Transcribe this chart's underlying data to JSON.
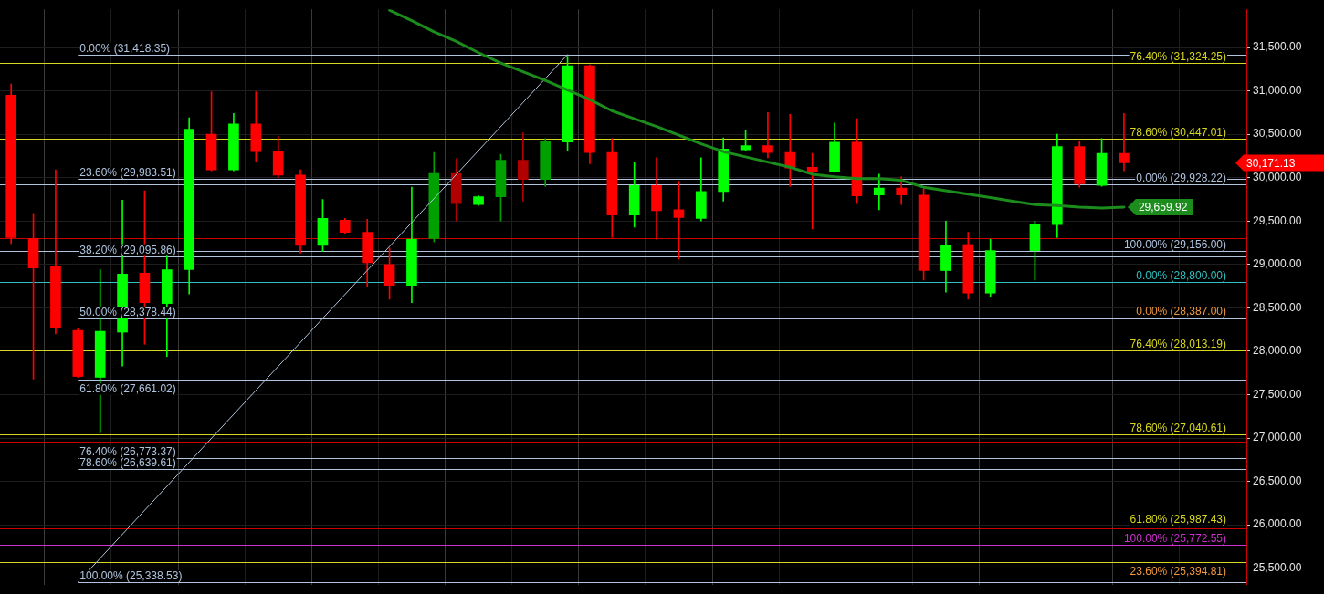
{
  "chart_data": {
    "type": "candlestick",
    "categories": [
      null,
      null,
      null,
      null,
      null,
      null,
      null,
      null,
      null,
      null,
      null,
      null,
      null,
      null,
      null,
      null,
      null,
      null,
      null,
      null,
      null,
      null,
      null,
      null,
      null,
      null,
      null,
      null,
      null,
      null,
      null,
      null,
      null,
      null,
      null,
      null,
      null,
      null,
      null,
      null,
      null,
      null,
      null,
      null,
      null,
      null,
      null,
      null,
      null,
      null,
      null
    ],
    "ohlc": [
      [
        30950,
        31080,
        29240,
        29310
      ],
      [
        29300,
        29590,
        27680,
        28960
      ],
      [
        28980,
        30090,
        28200,
        28270
      ],
      [
        28240,
        28260,
        27700,
        27710
      ],
      [
        27700,
        28940,
        27060,
        28230
      ],
      [
        28220,
        29740,
        27830,
        28890
      ],
      [
        28900,
        29850,
        28080,
        28560
      ],
      [
        28550,
        29100,
        27940,
        28940
      ],
      [
        28940,
        30690,
        28660,
        30560
      ],
      [
        30500,
        30990,
        30080,
        30090
      ],
      [
        30090,
        30740,
        30080,
        30620
      ],
      [
        30620,
        30990,
        30180,
        30300
      ],
      [
        30310,
        30480,
        30000,
        30030
      ],
      [
        30030,
        30090,
        29130,
        29220
      ],
      [
        29220,
        29750,
        29150,
        29530
      ],
      [
        29510,
        29530,
        29360,
        29370
      ],
      [
        29370,
        29520,
        28750,
        29020
      ],
      [
        29000,
        29190,
        28600,
        28760
      ],
      [
        28760,
        29890,
        28560,
        29290
      ],
      [
        29300,
        30290,
        29260,
        30050
      ],
      [
        30050,
        30220,
        29500,
        29700
      ],
      [
        29690,
        29790,
        29680,
        29780
      ],
      [
        29780,
        30270,
        29500,
        30200
      ],
      [
        30200,
        30520,
        29730,
        29980
      ],
      [
        29980,
        30450,
        29900,
        30420
      ],
      [
        30410,
        31400,
        30310,
        31290
      ],
      [
        31290,
        31300,
        30160,
        30290
      ],
      [
        30290,
        30450,
        29310,
        29570
      ],
      [
        29570,
        30180,
        29430,
        29910
      ],
      [
        29910,
        30230,
        29290,
        29620
      ],
      [
        29630,
        29960,
        29060,
        29540
      ],
      [
        29530,
        30230,
        29500,
        29840
      ],
      [
        29840,
        30460,
        29730,
        30330
      ],
      [
        30320,
        30550,
        30310,
        30370
      ],
      [
        30370,
        30750,
        30230,
        30290
      ],
      [
        30290,
        30730,
        29900,
        30110
      ],
      [
        30120,
        30280,
        29410,
        30070
      ],
      [
        30070,
        30630,
        30060,
        30410
      ],
      [
        30410,
        30680,
        29700,
        29790
      ],
      [
        29800,
        30040,
        29630,
        29880
      ],
      [
        29880,
        30010,
        29690,
        29800
      ],
      [
        29800,
        29870,
        28820,
        28930
      ],
      [
        28930,
        29500,
        28680,
        29220
      ],
      [
        29230,
        29370,
        28600,
        28670
      ],
      [
        28670,
        29290,
        28630,
        29160
      ],
      null,
      [
        29160,
        29500,
        28820,
        29460
      ],
      [
        29460,
        30500,
        29310,
        30360
      ],
      [
        30360,
        30420,
        29890,
        29930
      ],
      [
        29910,
        30450,
        29900,
        30280
      ],
      [
        30280,
        30740,
        30080,
        30171.13
      ]
    ],
    "colors": [
      "#ff0000",
      "#ff0000",
      "#ff0000",
      "#ff0000",
      "#00ff00",
      "#00ff00",
      "#ff0000",
      "#00ff00",
      "#00ff00",
      "#ff0000",
      "#00ff00",
      "#ff0000",
      "#ff0000",
      "#ff0000",
      "#00ff00",
      "#ff0000",
      "#ff0000",
      "#ff0000",
      "#00ff00",
      "#00a000",
      "#b00000",
      "#00ff00",
      "#00a000",
      "#b00000",
      "#00a000",
      "#00ff00",
      "#ff0000",
      "#ff0000",
      "#00ff00",
      "#ff0000",
      "#ff0000",
      "#00ff00",
      "#00ff00",
      "#00ff00",
      "#ff0000",
      "#ff0000",
      "#ff0000",
      "#00ff00",
      "#ff0000",
      "#00ff00",
      "#ff0000",
      "#ff0000",
      "#00ff00",
      "#ff0000",
      "#00ff00",
      null,
      "#00ff00",
      "#00ff00",
      "#ff0000",
      "#00ff00",
      "#ff0000"
    ],
    "value_labels": [
      null,
      null,
      null,
      null,
      null,
      null,
      null,
      null,
      null,
      null,
      null,
      null,
      null,
      null,
      null,
      null,
      null,
      null,
      null,
      null,
      null,
      null,
      null,
      null,
      null,
      null,
      null,
      null,
      null,
      null,
      null,
      null,
      null,
      null,
      null,
      null,
      null,
      null,
      null,
      null,
      null,
      null,
      null,
      null,
      null,
      null,
      null,
      null,
      null,
      null,
      "30,171.13"
    ],
    "series": [
      {
        "type": "line",
        "color": "#1c8c1c",
        "values": [
          null,
          null,
          null,
          null,
          null,
          null,
          null,
          null,
          null,
          null,
          null,
          null,
          null,
          null,
          null,
          null,
          null,
          31930,
          31810,
          31680,
          31570,
          31440,
          31320,
          31220,
          31120,
          31010,
          30900,
          30770,
          30680,
          30590,
          30490,
          30390,
          30300,
          30240,
          30180,
          30120,
          30040,
          30010,
          29990,
          29990,
          29970,
          29890,
          29850,
          29810,
          29770,
          29730,
          29690,
          29680,
          29660,
          29650,
          29659.92
        ],
        "value_labels": [
          null,
          null,
          null,
          null,
          null,
          null,
          null,
          null,
          null,
          null,
          null,
          null,
          null,
          null,
          null,
          null,
          null,
          null,
          null,
          null,
          null,
          null,
          null,
          null,
          null,
          null,
          null,
          null,
          null,
          null,
          null,
          null,
          null,
          null,
          null,
          null,
          null,
          null,
          null,
          null,
          null,
          null,
          null,
          null,
          null,
          null,
          null,
          null,
          null,
          null,
          "29,659.92"
        ]
      },
      {
        "type": "line",
        "color": "#b0c4de",
        "values": [
          null,
          null,
          null,
          25338.53,
          null,
          null,
          null,
          null,
          null,
          null,
          null,
          null,
          null,
          null,
          null,
          null,
          null,
          null,
          null,
          null,
          null,
          null,
          null,
          null,
          null,
          31418.35,
          null,
          null,
          null,
          null,
          null,
          null,
          null,
          null,
          null,
          null,
          null,
          null,
          null,
          null,
          null,
          null,
          null,
          null,
          null,
          null,
          null,
          null,
          null,
          null,
          null
        ]
      }
    ],
    "ylim": [
      25310,
      31940
    ],
    "yticks": [
      {
        "value": 25500,
        "label": "25,500.00"
      },
      {
        "value": 26000,
        "label": "26,000.00"
      },
      {
        "value": 26500,
        "label": "26,500.00"
      },
      {
        "value": 27000,
        "label": "27,000.00"
      },
      {
        "value": 27500,
        "label": "27,500.00"
      },
      {
        "value": 28000,
        "label": "28,000.00"
      },
      {
        "value": 28500,
        "label": "28,500.00"
      },
      {
        "value": 29000,
        "label": "29,000.00"
      },
      {
        "value": 29500,
        "label": "29,500.00"
      },
      {
        "value": 30000,
        "label": "30,000.00"
      },
      {
        "value": 30500,
        "label": "30,500.00"
      },
      {
        "value": 31000,
        "label": "31,000.00"
      },
      {
        "value": 31500,
        "label": "31,500.00"
      }
    ],
    "ref_lines": [
      {
        "axis": "y",
        "value": 31324.25,
        "label": "76.40% (31,324.25)",
        "color": "#d8d820"
      },
      {
        "axis": "y",
        "value": 30447.01,
        "label": "78.60% (30,447.01)",
        "color": "#d8d820"
      },
      {
        "axis": "y",
        "value": 29928.22,
        "label": "0.00% (29,928.22)",
        "color": "#b0c4de"
      },
      {
        "axis": "y",
        "value": 29156.0,
        "label": "100.00% (29,156.00)",
        "color": "#b0c4de"
      },
      {
        "axis": "y",
        "value": 28800.0,
        "label": "0.00% (28,800.00)",
        "color": "#30c0c0"
      },
      {
        "axis": "y",
        "value": 28387.0,
        "label": "0.00% (28,387.00)",
        "color": "#f09a40"
      },
      {
        "axis": "y",
        "value": 28013.19,
        "label": "76.40% (28,013.19)",
        "color": "#d8d820"
      },
      {
        "axis": "y",
        "value": 27040.61,
        "label": "78.60% (27,040.61)",
        "color": "#d8d820"
      },
      {
        "axis": "y",
        "value": 25987.43,
        "label": "61.80% (25,987.43)",
        "color": "#d8d820"
      },
      {
        "axis": "y",
        "value": 25772.55,
        "label": "100.00% (25,772.55)",
        "color": "#d030d0"
      },
      {
        "axis": "y",
        "value": 25394.81,
        "label": "23.60% (25,394.81)",
        "color": "#f09a40"
      },
      {
        "axis": "y",
        "value": 29300,
        "color": "#cc0000"
      },
      {
        "axis": "y",
        "value": 26960,
        "color": "#cc0000"
      },
      {
        "axis": "y",
        "value": 26590,
        "color": "#d8d820"
      },
      {
        "axis": "y",
        "value": 25955,
        "color": "#cc0000"
      },
      {
        "axis": "y",
        "value": 25570,
        "color": "#d8d820"
      },
      {
        "axis": "y",
        "value": 25510,
        "color": "#d8d820"
      },
      {
        "axis": "y",
        "value": 31418.35,
        "color": "#b0c4de"
      },
      {
        "axis": "y",
        "value": 29983.51,
        "color": "#b0c4de"
      },
      {
        "axis": "y",
        "value": 29095.86,
        "color": "#b0c4de"
      },
      {
        "axis": "y",
        "value": 28378.44,
        "color": "#b0c4de"
      },
      {
        "axis": "y",
        "value": 27661.02,
        "color": "#b0c4de"
      },
      {
        "axis": "y",
        "value": 26773.37,
        "color": "#b0c4de"
      },
      {
        "axis": "y",
        "value": 26639.61,
        "color": "#b0c4de"
      },
      {
        "axis": "y",
        "value": 25338.53,
        "color": "#b0c4de"
      }
    ],
    "annotations": [
      {
        "text": "0.00% (31,418.35)",
        "y": 31418.35
      },
      {
        "text": "23.60% (29,983.51)",
        "y": 29983.51
      },
      {
        "text": "38.20% (29,095.86)",
        "y": 29095.86
      },
      {
        "text": "50.00% (28,378.44)",
        "y": 28378.44
      },
      {
        "text": "61.80% (27,661.02)",
        "y": 27661.02
      },
      {
        "text": "76.40% (26,773.37)",
        "y": 26773.37
      },
      {
        "text": "78.60% (26,639.61)",
        "y": 26639.61
      },
      {
        "text": "100.00% (25,338.53)",
        "y": 25338.53
      }
    ],
    "grid": true,
    "tick_labels": "y",
    "marker": "none"
  }
}
